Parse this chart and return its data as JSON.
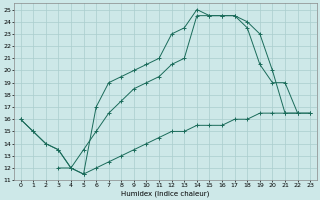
{
  "xlabel": "Humidex (Indice chaleur)",
  "xlim": [
    -0.5,
    23.5
  ],
  "ylim": [
    11,
    25.5
  ],
  "xticks": [
    0,
    1,
    2,
    3,
    4,
    5,
    6,
    7,
    8,
    9,
    10,
    11,
    12,
    13,
    14,
    15,
    16,
    17,
    18,
    19,
    20,
    21,
    22,
    23
  ],
  "yticks": [
    11,
    12,
    13,
    14,
    15,
    16,
    17,
    18,
    19,
    20,
    21,
    22,
    23,
    24,
    25
  ],
  "background_color": "#cde8e8",
  "grid_color": "#aacece",
  "line_color": "#1a6b5a",
  "line1_x": [
    0,
    1,
    2,
    3,
    4,
    5,
    6,
    7,
    8,
    9,
    10,
    11,
    12,
    13,
    14,
    15,
    16,
    17,
    18,
    19,
    20,
    21,
    22
  ],
  "line1_y": [
    16,
    15,
    14,
    13.5,
    12,
    11.5,
    17,
    19,
    19.5,
    20,
    20.5,
    21,
    23,
    23.5,
    25,
    24.5,
    24.5,
    24.5,
    24,
    23,
    20,
    16.5,
    16.5
  ],
  "line2_x": [
    3,
    4,
    5,
    6,
    7,
    8,
    9,
    10,
    11,
    12,
    13,
    14,
    15,
    16,
    17,
    18,
    19,
    20,
    21,
    22,
    23
  ],
  "line2_y": [
    12,
    12,
    13.5,
    15,
    16.5,
    17.5,
    18.5,
    19,
    19.5,
    20.5,
    21,
    24.5,
    24.5,
    24.5,
    24.5,
    23.5,
    20.5,
    19,
    19,
    16.5,
    16.5
  ],
  "line3_x": [
    0,
    1,
    2,
    3,
    4,
    5,
    6,
    7,
    8,
    9,
    10,
    11,
    12,
    13,
    14,
    15,
    16,
    17,
    18,
    19,
    20,
    21,
    22,
    23
  ],
  "line3_y": [
    16,
    15,
    14,
    13.5,
    12,
    11.5,
    12,
    12.5,
    13,
    13.5,
    14,
    14.5,
    15,
    15,
    15.5,
    15.5,
    15.5,
    16,
    16,
    16.5,
    16.5,
    16.5,
    16.5,
    16.5
  ]
}
